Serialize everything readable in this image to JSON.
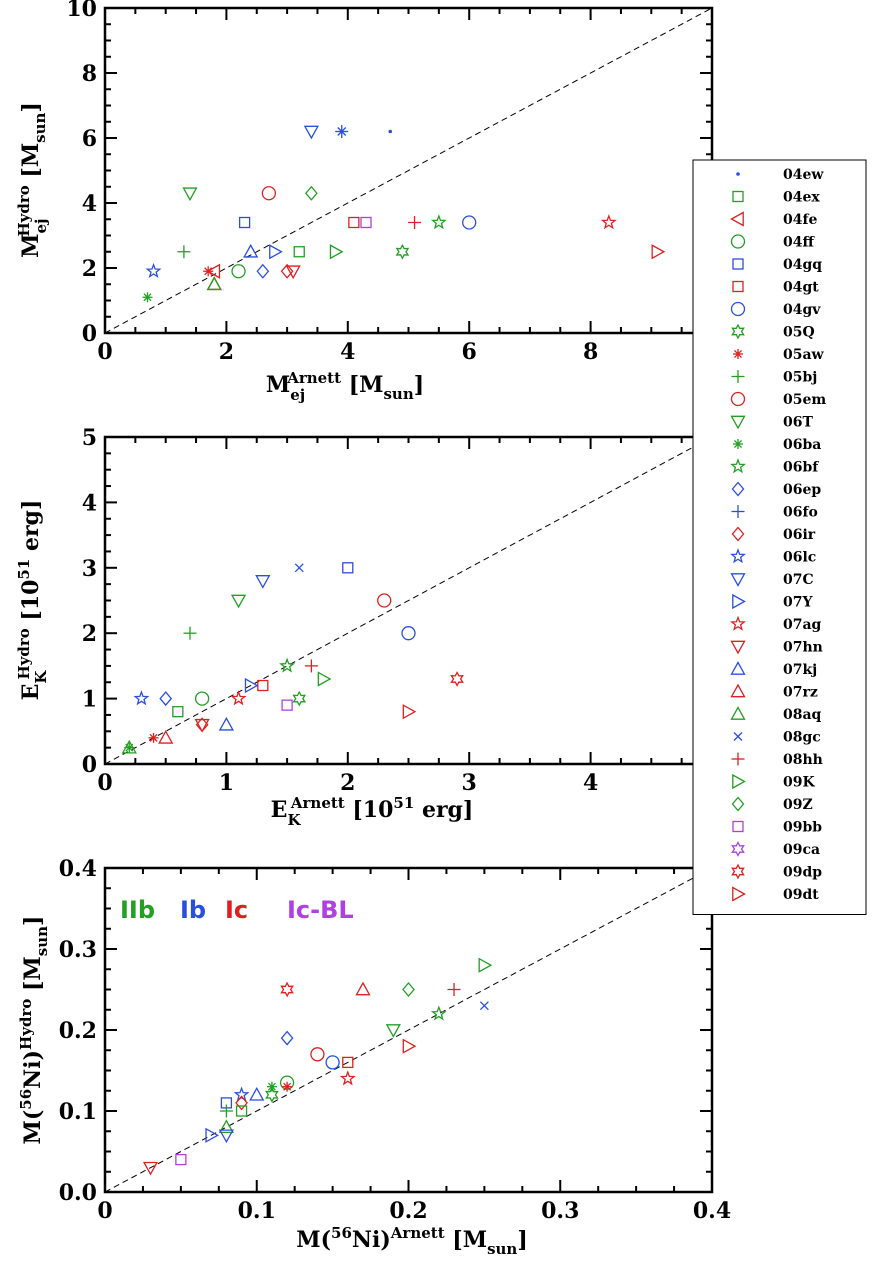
{
  "colors": {
    "IIb": "#22a022",
    "Ib": "#2a4fe0",
    "Ic": "#e02020",
    "IcBL": "#b040e0"
  },
  "chart_data": [
    {
      "type": "scatter",
      "id": "mej",
      "xlabel": {
        "main": "M",
        "sub": "ej",
        "sup": "Arnett",
        "tail": " [M",
        "tailsub": "sun",
        "end": "]"
      },
      "ylabel": {
        "main": "M",
        "sub": "ej",
        "sup": "Hydro",
        "tail": " [M",
        "tailsub": "sun",
        "end": "]"
      },
      "xlim": [
        0,
        10
      ],
      "ylim": [
        0,
        10
      ],
      "xticks": [
        "0",
        "2",
        "4",
        "6",
        "8",
        ""
      ],
      "yticks": [
        "0",
        "2",
        "4",
        "6",
        "8",
        "10"
      ],
      "diagonal": true,
      "points": [
        {
          "sn": "04ew",
          "x": 4.7,
          "y": 6.2
        },
        {
          "sn": "04ex",
          "x": 3.2,
          "y": 2.5
        },
        {
          "sn": "04fe",
          "x": 1.8,
          "y": 1.9
        },
        {
          "sn": "04ff",
          "x": 2.2,
          "y": 1.9
        },
        {
          "sn": "04gq",
          "x": 2.3,
          "y": 3.4
        },
        {
          "sn": "04gt",
          "x": 4.1,
          "y": 3.4
        },
        {
          "sn": "04gv",
          "x": 6.0,
          "y": 3.4
        },
        {
          "sn": "05Q",
          "x": 4.9,
          "y": 2.5
        },
        {
          "sn": "05aw",
          "x": 1.7,
          "y": 1.9
        },
        {
          "sn": "05bj",
          "x": 1.3,
          "y": 2.5
        },
        {
          "sn": "05em",
          "x": 2.7,
          "y": 4.3
        },
        {
          "sn": "06T",
          "x": 1.4,
          "y": 4.3
        },
        {
          "sn": "06ba",
          "x": 0.7,
          "y": 1.1
        },
        {
          "sn": "06bf",
          "x": 5.5,
          "y": 3.4
        },
        {
          "sn": "06ep",
          "x": 2.6,
          "y": 1.9
        },
        {
          "sn": "06fo",
          "x": 3.9,
          "y": 6.2
        },
        {
          "sn": "06ir",
          "x": 3.0,
          "y": 1.9
        },
        {
          "sn": "06lc",
          "x": 0.8,
          "y": 1.9
        },
        {
          "sn": "07C",
          "x": 3.4,
          "y": 6.2
        },
        {
          "sn": "07Y",
          "x": 2.8,
          "y": 2.5
        },
        {
          "sn": "07ag",
          "x": 8.3,
          "y": 3.4
        },
        {
          "sn": "07hn",
          "x": 3.1,
          "y": 1.9
        },
        {
          "sn": "07kj",
          "x": 2.4,
          "y": 2.5
        },
        {
          "sn": "07rz",
          "x": 1.8,
          "y": 1.5
        },
        {
          "sn": "08aq",
          "x": 1.8,
          "y": 1.5
        },
        {
          "sn": "08gc",
          "x": 3.9,
          "y": 6.2
        },
        {
          "sn": "08hh",
          "x": 5.1,
          "y": 3.4
        },
        {
          "sn": "09K",
          "x": 3.8,
          "y": 2.5
        },
        {
          "sn": "09Z",
          "x": 3.4,
          "y": 4.3
        },
        {
          "sn": "09bb",
          "x": 4.3,
          "y": 3.4
        },
        {
          "sn": "09dt",
          "x": 9.1,
          "y": 2.5
        }
      ]
    },
    {
      "type": "scatter",
      "id": "ek",
      "xlabel": {
        "main": "E",
        "sub": "K",
        "sup": "Arnett",
        "tail": " [10",
        "tailsup": "51",
        "end": " erg]"
      },
      "ylabel": {
        "main": "E",
        "sub": "K",
        "sup": "Hydro",
        "tail": " [10",
        "tailsup": "51",
        "end": " erg]"
      },
      "xlim": [
        0,
        5
      ],
      "ylim": [
        0,
        5
      ],
      "xticks": [
        "0",
        "1",
        "2",
        "3",
        "4",
        ""
      ],
      "yticks": [
        "0",
        "1",
        "2",
        "3",
        "4",
        "5"
      ],
      "diagonal": true,
      "points": [
        {
          "sn": "04gq",
          "x": 2.0,
          "y": 3.0
        },
        {
          "sn": "08gc",
          "x": 1.6,
          "y": 3.0
        },
        {
          "sn": "07C",
          "x": 1.3,
          "y": 2.8
        },
        {
          "sn": "06T",
          "x": 1.1,
          "y": 2.5
        },
        {
          "sn": "05em",
          "x": 2.3,
          "y": 2.5
        },
        {
          "sn": "04gv",
          "x": 2.5,
          "y": 2.0
        },
        {
          "sn": "05bj",
          "x": 0.7,
          "y": 2.0
        },
        {
          "sn": "08hh",
          "x": 1.7,
          "y": 1.5
        },
        {
          "sn": "06bf",
          "x": 1.5,
          "y": 1.5
        },
        {
          "sn": "09K",
          "x": 1.8,
          "y": 1.3
        },
        {
          "sn": "09dp",
          "x": 2.9,
          "y": 1.3
        },
        {
          "sn": "04gt",
          "x": 1.3,
          "y": 1.2
        },
        {
          "sn": "07Y",
          "x": 1.2,
          "y": 1.2
        },
        {
          "sn": "06lc",
          "x": 0.3,
          "y": 1.0
        },
        {
          "sn": "06ep",
          "x": 0.5,
          "y": 1.0
        },
        {
          "sn": "04ff",
          "x": 0.8,
          "y": 1.0
        },
        {
          "sn": "07ag",
          "x": 1.1,
          "y": 1.0
        },
        {
          "sn": "05Q",
          "x": 1.6,
          "y": 1.0
        },
        {
          "sn": "09bb",
          "x": 1.5,
          "y": 0.9
        },
        {
          "sn": "04ex",
          "x": 0.6,
          "y": 0.8
        },
        {
          "sn": "09dt",
          "x": 2.5,
          "y": 0.8
        },
        {
          "sn": "07kj",
          "x": 1.0,
          "y": 0.6
        },
        {
          "sn": "06ir",
          "x": 0.8,
          "y": 0.6
        },
        {
          "sn": "07hn",
          "x": 0.8,
          "y": 0.6
        },
        {
          "sn": "07rz",
          "x": 0.5,
          "y": 0.4
        },
        {
          "sn": "05aw",
          "x": 0.4,
          "y": 0.4
        },
        {
          "sn": "08aq",
          "x": 0.2,
          "y": 0.25
        },
        {
          "sn": "06ba",
          "x": 0.2,
          "y": 0.25
        }
      ]
    },
    {
      "type": "scatter",
      "id": "ni",
      "xlabel": {
        "main": "M(",
        "sup1": "56",
        "mid": "Ni)",
        "sup": "Arnett",
        "tail": " [M",
        "tailsub": "sun",
        "end": "]"
      },
      "ylabel": {
        "main": "M(",
        "sup1": "56",
        "mid": "Ni)",
        "sup": "Hydro",
        "tail": " [M",
        "tailsub": "sun",
        "end": "]"
      },
      "xlim": [
        0,
        0.4
      ],
      "ylim": [
        0,
        0.4
      ],
      "xticks": [
        "0",
        "0.1",
        "0.2",
        "0.3",
        "0.4"
      ],
      "yticks": [
        "0.0",
        "0.1",
        "0.2",
        "0.3",
        "0.4"
      ],
      "diagonal": true,
      "type_labels": [
        "IIb",
        "Ib",
        "Ic",
        "Ic-BL"
      ],
      "points": [
        {
          "sn": "09K",
          "x": 0.25,
          "y": 0.28
        },
        {
          "sn": "07rz",
          "x": 0.17,
          "y": 0.25
        },
        {
          "sn": "09Z",
          "x": 0.2,
          "y": 0.25
        },
        {
          "sn": "09dp",
          "x": 0.12,
          "y": 0.25
        },
        {
          "sn": "08hh",
          "x": 0.23,
          "y": 0.25
        },
        {
          "sn": "08gc",
          "x": 0.25,
          "y": 0.23
        },
        {
          "sn": "06bf",
          "x": 0.22,
          "y": 0.22
        },
        {
          "sn": "06T",
          "x": 0.19,
          "y": 0.2
        },
        {
          "sn": "06ep",
          "x": 0.12,
          "y": 0.19
        },
        {
          "sn": "09dt",
          "x": 0.2,
          "y": 0.18
        },
        {
          "sn": "05em",
          "x": 0.14,
          "y": 0.17
        },
        {
          "sn": "04gt",
          "x": 0.16,
          "y": 0.16
        },
        {
          "sn": "04gv",
          "x": 0.15,
          "y": 0.16
        },
        {
          "sn": "07ag",
          "x": 0.16,
          "y": 0.14
        },
        {
          "sn": "04ff",
          "x": 0.12,
          "y": 0.135
        },
        {
          "sn": "06ba",
          "x": 0.11,
          "y": 0.13
        },
        {
          "sn": "05aw",
          "x": 0.12,
          "y": 0.13
        },
        {
          "sn": "07kj",
          "x": 0.1,
          "y": 0.12
        },
        {
          "sn": "06lc",
          "x": 0.09,
          "y": 0.12
        },
        {
          "sn": "05Q",
          "x": 0.11,
          "y": 0.12
        },
        {
          "sn": "06ir",
          "x": 0.09,
          "y": 0.11
        },
        {
          "sn": "04gq",
          "x": 0.08,
          "y": 0.11
        },
        {
          "sn": "05bj",
          "x": 0.08,
          "y": 0.1
        },
        {
          "sn": "04ex",
          "x": 0.09,
          "y": 0.1
        },
        {
          "sn": "08aq",
          "x": 0.08,
          "y": 0.08
        },
        {
          "sn": "07Y",
          "x": 0.07,
          "y": 0.07
        },
        {
          "sn": "07C",
          "x": 0.08,
          "y": 0.07
        },
        {
          "sn": "09bb",
          "x": 0.05,
          "y": 0.04
        },
        {
          "sn": "07hn",
          "x": 0.03,
          "y": 0.03
        }
      ]
    }
  ],
  "legend": [
    {
      "sn": "04ew",
      "marker": "dot",
      "color": "Ib"
    },
    {
      "sn": "04ex",
      "marker": "square",
      "color": "IIb"
    },
    {
      "sn": "04fe",
      "marker": "tri-left",
      "color": "Ic"
    },
    {
      "sn": "04ff",
      "marker": "circle",
      "color": "IIb"
    },
    {
      "sn": "04gq",
      "marker": "square",
      "color": "Ib"
    },
    {
      "sn": "04gt",
      "marker": "square",
      "color": "Ic"
    },
    {
      "sn": "04gv",
      "marker": "circle",
      "color": "Ib"
    },
    {
      "sn": "05Q",
      "marker": "star6",
      "color": "IIb"
    },
    {
      "sn": "05aw",
      "marker": "asterisk",
      "color": "Ic"
    },
    {
      "sn": "05bj",
      "marker": "plus",
      "color": "IIb"
    },
    {
      "sn": "05em",
      "marker": "circle",
      "color": "Ic"
    },
    {
      "sn": "06T",
      "marker": "tri-down",
      "color": "IIb"
    },
    {
      "sn": "06ba",
      "marker": "asterisk",
      "color": "IIb"
    },
    {
      "sn": "06bf",
      "marker": "star5",
      "color": "IIb"
    },
    {
      "sn": "06ep",
      "marker": "diamond",
      "color": "Ib"
    },
    {
      "sn": "06fo",
      "marker": "plus",
      "color": "Ib"
    },
    {
      "sn": "06ir",
      "marker": "diamond",
      "color": "Ic"
    },
    {
      "sn": "06lc",
      "marker": "star5",
      "color": "Ib"
    },
    {
      "sn": "07C",
      "marker": "tri-down",
      "color": "Ib"
    },
    {
      "sn": "07Y",
      "marker": "tri-right",
      "color": "Ib"
    },
    {
      "sn": "07ag",
      "marker": "star5",
      "color": "Ic"
    },
    {
      "sn": "07hn",
      "marker": "tri-down",
      "color": "Ic"
    },
    {
      "sn": "07kj",
      "marker": "tri-up",
      "color": "Ib"
    },
    {
      "sn": "07rz",
      "marker": "tri-up",
      "color": "Ic"
    },
    {
      "sn": "08aq",
      "marker": "tri-up",
      "color": "IIb"
    },
    {
      "sn": "08gc",
      "marker": "x",
      "color": "Ib"
    },
    {
      "sn": "08hh",
      "marker": "plus",
      "color": "Ic"
    },
    {
      "sn": "09K",
      "marker": "tri-right",
      "color": "IIb"
    },
    {
      "sn": "09Z",
      "marker": "diamond",
      "color": "IIb"
    },
    {
      "sn": "09bb",
      "marker": "square",
      "color": "IcBL"
    },
    {
      "sn": "09ca",
      "marker": "star6",
      "color": "IcBL"
    },
    {
      "sn": "09dp",
      "marker": "star6",
      "color": "Ic"
    },
    {
      "sn": "09dt",
      "marker": "tri-right",
      "color": "Ic"
    }
  ]
}
